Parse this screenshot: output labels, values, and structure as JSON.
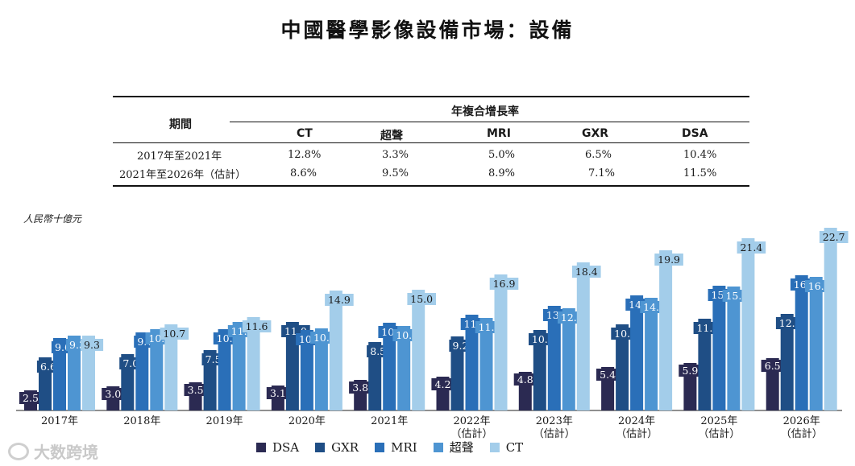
{
  "title": "中國醫學影像設備市場：設備",
  "cagr_table": {
    "period_header": "期間",
    "group_header": "年複合增長率",
    "columns": [
      "CT",
      "超聲",
      "MRI",
      "GXR",
      "DSA"
    ],
    "rows": [
      {
        "period": "2017年至2021年",
        "values": [
          "12.8%",
          "3.3%",
          "5.0%",
          "6.5%",
          "10.4%"
        ]
      },
      {
        "period": "2021年至2026年（估計）",
        "values": [
          "8.6%",
          "9.5%",
          "8.9%",
          "7.1%",
          "11.5%"
        ]
      }
    ]
  },
  "unit_label": "人民幣十億元",
  "watermark": "大数跨境",
  "colors": {
    "DSA": "#2b2a52",
    "GXR": "#1f4e85",
    "MRI": "#2a6fb8",
    "超聲": "#4e95d2",
    "CT": "#a3cdea"
  },
  "chart_data": {
    "type": "bar",
    "title": "中國醫學影像設備市場：設備",
    "ylabel": "人民幣十億元",
    "ylim": [
      0,
      23
    ],
    "categories": [
      [
        "2017年"
      ],
      [
        "2018年"
      ],
      [
        "2019年"
      ],
      [
        "2020年"
      ],
      [
        "2021年"
      ],
      [
        "2022年",
        "（估計）"
      ],
      [
        "2023年",
        "（估計）"
      ],
      [
        "2024年",
        "（估計）"
      ],
      [
        "2025年",
        "（估計）"
      ],
      [
        "2026年",
        "（估計）"
      ]
    ],
    "series": [
      {
        "name": "DSA",
        "values": [
          2.5,
          3.0,
          3.5,
          3.1,
          3.8,
          4.2,
          4.8,
          5.4,
          5.9,
          6.5
        ]
      },
      {
        "name": "GXR",
        "values": [
          6.6,
          7.0,
          7.5,
          11.0,
          8.5,
          9.2,
          10.0,
          10.7,
          11.4,
          12.0
        ]
      },
      {
        "name": "MRI",
        "values": [
          9.0,
          9.7,
          10.1,
          10.0,
          10.9,
          11.9,
          13.0,
          14.3,
          15.5,
          16.8
        ]
      },
      {
        "name": "超聲",
        "values": [
          9.3,
          10.1,
          11.0,
          10.2,
          10.5,
          11.5,
          12.7,
          14.0,
          15.4,
          16.6
        ]
      },
      {
        "name": "CT",
        "values": [
          9.3,
          10.7,
          11.6,
          14.9,
          15.0,
          16.9,
          18.4,
          19.9,
          21.4,
          22.7
        ]
      }
    ],
    "legend": [
      "DSA",
      "GXR",
      "MRI",
      "超聲",
      "CT"
    ],
    "legend_position": "bottom"
  }
}
